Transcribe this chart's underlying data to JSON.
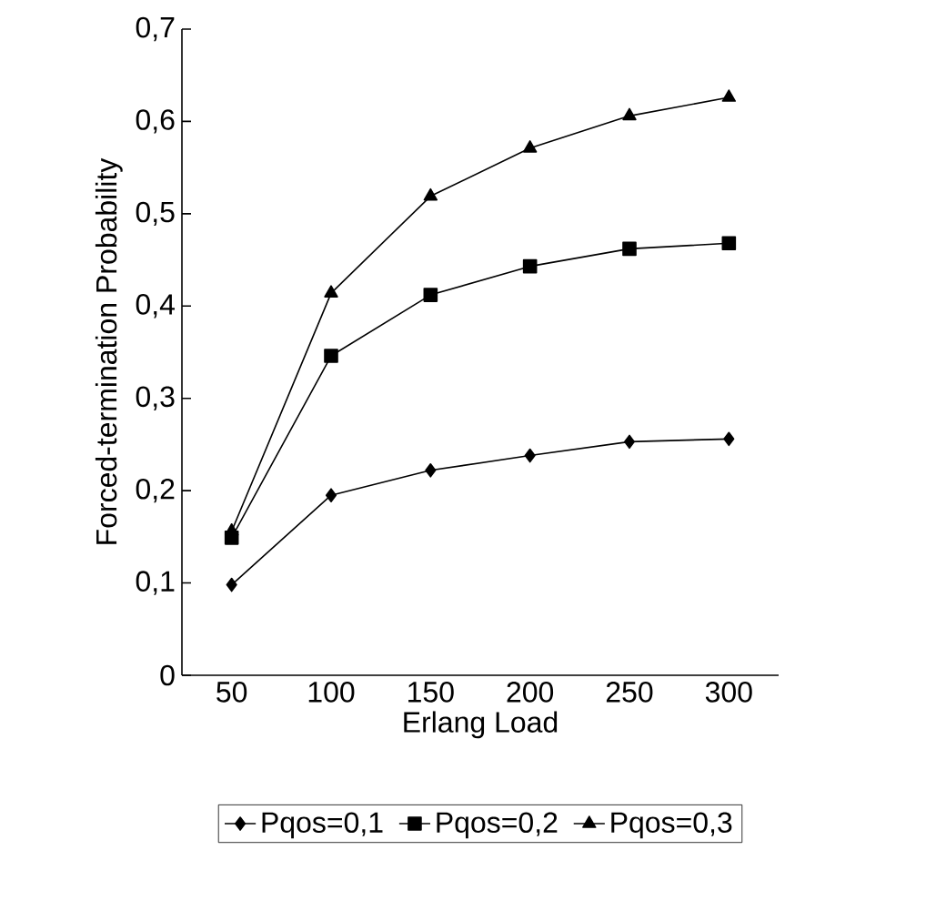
{
  "chart_data": {
    "type": "line",
    "xlabel": "Erlang Load",
    "ylabel": "Forced-termination Probability",
    "categories": [
      "50",
      "100",
      "150",
      "200",
      "250",
      "300"
    ],
    "ylim": [
      0,
      0.7
    ],
    "yticks": [
      0,
      {
        "value": 0.1,
        "label": "0,1"
      },
      {
        "value": 0.2,
        "label": "0,2"
      },
      {
        "value": 0.3,
        "label": "0,3"
      },
      {
        "value": 0.4,
        "label": "0,4"
      },
      {
        "value": 0.5,
        "label": "0,5"
      },
      {
        "value": 0.6,
        "label": "0,6"
      },
      {
        "value": 0.7,
        "label": "0,7"
      }
    ],
    "grid": false,
    "legend": "bottom",
    "series": [
      {
        "name": "Pqos=0,1",
        "color": "#000000",
        "marker": "diamond",
        "values": [
          0.098,
          0.195,
          0.222,
          0.238,
          0.253,
          0.256
        ]
      },
      {
        "name": "Pqos=0,2",
        "color": "#000000",
        "marker": "square",
        "values": [
          0.149,
          0.346,
          0.412,
          0.443,
          0.462,
          0.468
        ]
      },
      {
        "name": "Pqos=0,3",
        "color": "#000000",
        "marker": "triangle",
        "values": [
          0.156,
          0.414,
          0.519,
          0.571,
          0.606,
          0.626
        ]
      }
    ]
  }
}
